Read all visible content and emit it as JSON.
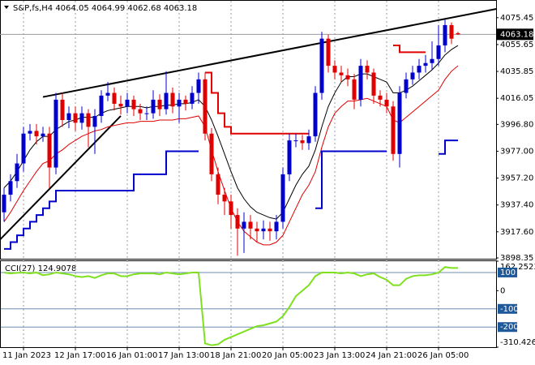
{
  "chart_data": [
    {
      "type": "candlestick",
      "title": "S&P,fs,H4  4064.05 4064.99 4062.68 4063.18",
      "up_color": "#0000cd",
      "down_color": "#e00000",
      "categories": [
        null,
        null,
        null,
        "11 Jan 2023",
        null,
        null,
        null,
        null,
        null,
        null,
        null,
        "12 Jan 17:00",
        null,
        null,
        null,
        null,
        null,
        null,
        null,
        "16 Jan 01:00",
        null,
        null,
        null,
        null,
        null,
        null,
        null,
        "17 Jan 13:00",
        null,
        null,
        null,
        null,
        null,
        null,
        null,
        "18 Jan 21:00",
        null,
        null,
        null,
        null,
        null,
        null,
        null,
        "20 Jan 05:00",
        null,
        null,
        null,
        null,
        null,
        null,
        null,
        "23 Jan 13:00",
        null,
        null,
        null,
        null,
        null,
        null,
        null,
        "24 Jan 21:00",
        null,
        null,
        null,
        null,
        null,
        null,
        null,
        "26 Jan 05:00",
        null,
        null,
        null
      ],
      "open": [
        3932,
        3945,
        3955,
        3968,
        3990,
        3992,
        3988,
        3990,
        3965,
        4015,
        4000,
        4005,
        3998,
        4005,
        3995,
        4003,
        4018,
        4020,
        4012,
        4010,
        4015,
        4008,
        4005,
        4005,
        4015,
        4008,
        4020,
        4010,
        4015,
        4012,
        4020,
        4030,
        3990,
        3960,
        3945,
        3940,
        3930,
        3920,
        3925,
        3920,
        3918,
        3920,
        3918,
        3925,
        3960,
        3985,
        3985,
        3983,
        3988,
        4020,
        4060,
        4040,
        4035,
        4033,
        4030,
        4015,
        4040,
        4035,
        4018,
        4015,
        4010,
        3975,
        4020,
        4030,
        4035,
        4040,
        4042,
        4045,
        4055,
        4070,
        4064.05
      ],
      "high": [
        3950,
        3960,
        3975,
        3995,
        3997,
        3997,
        3995,
        3995,
        4020,
        4020,
        4010,
        4010,
        4010,
        4008,
        4008,
        4022,
        4028,
        4024,
        4018,
        4020,
        4018,
        4012,
        4010,
        4022,
        4019,
        4036,
        4024,
        4020,
        4018,
        4025,
        4035,
        4035,
        3994,
        3965,
        3950,
        3945,
        3935,
        3932,
        3930,
        3925,
        3926,
        3925,
        3930,
        3965,
        3990,
        3990,
        3989,
        3993,
        4025,
        4065,
        4063,
        4044,
        4040,
        4038,
        4034,
        4045,
        4044,
        4038,
        4022,
        4020,
        4014,
        4025,
        4035,
        4040,
        4045,
        4048,
        4058,
        4070,
        4074,
        4072,
        4064.99
      ],
      "low": [
        3925,
        3940,
        3950,
        3962,
        3985,
        3982,
        3984,
        3950,
        3960,
        3995,
        3994,
        3992,
        3993,
        3980,
        3975,
        3998,
        4014,
        4007,
        4004,
        4005,
        4003,
        4000,
        4000,
        4001,
        4003,
        4004,
        4005,
        3998,
        4007,
        4008,
        4012,
        3985,
        3955,
        3938,
        3930,
        3920,
        3900,
        3902,
        3912,
        3910,
        3912,
        3911,
        3912,
        3920,
        3955,
        3980,
        3978,
        3978,
        3984,
        4015,
        4035,
        4030,
        4028,
        4025,
        4008,
        4010,
        4030,
        4012,
        4010,
        4005,
        3970,
        3965,
        4016,
        4026,
        4030,
        4035,
        4037,
        4040,
        4050,
        4056,
        4062.68
      ],
      "close": [
        3945,
        3955,
        3968,
        3990,
        3992,
        3988,
        3990,
        3965,
        4015,
        4000,
        4005,
        3998,
        4005,
        3995,
        4003,
        4018,
        4020,
        4012,
        4010,
        4015,
        4008,
        4005,
        4005,
        4015,
        4008,
        4020,
        4010,
        4015,
        4012,
        4020,
        4030,
        3990,
        3960,
        3945,
        3940,
        3930,
        3920,
        3925,
        3920,
        3918,
        3920,
        3918,
        3925,
        3960,
        3985,
        3985,
        3983,
        3988,
        4020,
        4060,
        4040,
        4035,
        4033,
        4030,
        4015,
        4040,
        4035,
        4018,
        4015,
        4010,
        3975,
        4020,
        4030,
        4035,
        4040,
        4042,
        4045,
        4055,
        4070,
        4060,
        4063.18
      ],
      "overlays": [
        {
          "color": "#000000",
          "values": [
            3950,
            3955,
            3962,
            3970,
            3978,
            3984,
            3988,
            3988,
            3993,
            3996,
            3999,
            4000,
            4002,
            4002,
            4002,
            4005,
            4007,
            4008,
            4009,
            4010,
            4010,
            4010,
            4009,
            4010,
            4010,
            4011,
            4011,
            4012,
            4012,
            4013,
            4015,
            4010,
            4000,
            3988,
            3975,
            3962,
            3950,
            3942,
            3936,
            3932,
            3930,
            3928,
            3927,
            3932,
            3942,
            3952,
            3960,
            3966,
            3978,
            3995,
            4010,
            4020,
            4028,
            4032,
            4032,
            4034,
            4034,
            4032,
            4030,
            4028,
            4020,
            4020,
            4022,
            4025,
            4029,
            4033,
            4037,
            4042,
            4048,
            4052,
            4055
          ]
        },
        {
          "color": "#e00000",
          "values": [
            3925,
            3932,
            3940,
            3948,
            3955,
            3962,
            3968,
            3970,
            3975,
            3978,
            3982,
            3985,
            3988,
            3990,
            3992,
            3993,
            3995,
            3996,
            3997,
            3998,
            3998,
            3999,
            3999,
            3999,
            4000,
            4000,
            4000,
            4001,
            4001,
            4002,
            4003,
            3995,
            3978,
            3962,
            3948,
            3935,
            3925,
            3918,
            3914,
            3910,
            3908,
            3908,
            3910,
            3915,
            3925,
            3935,
            3945,
            3952,
            3962,
            3980,
            3995,
            4005,
            4010,
            4014,
            4014,
            4015,
            4016,
            4014,
            4012,
            4010,
            4000,
            3998,
            4002,
            4006,
            4010,
            4014,
            4018,
            4022,
            4030,
            4036,
            4040
          ]
        },
        {
          "color": "#0000cd",
          "step": true,
          "values": [
            3905,
            3910,
            3915,
            3920,
            3925,
            3930,
            3935,
            3940,
            3948,
            3948,
            3948,
            3948,
            3948,
            3948,
            3948,
            3948,
            3948,
            3948,
            3948,
            3948,
            3960,
            3960,
            3960,
            3960,
            3960,
            3977,
            3977,
            3977,
            3977,
            3977,
            3977,
            null,
            null,
            null,
            null,
            null,
            null,
            null,
            null,
            null,
            null,
            null,
            null,
            null,
            null,
            null,
            null,
            null,
            3935,
            3977,
            3977,
            3977,
            3977,
            3977,
            3977,
            3977,
            3977,
            3977,
            3977,
            3977,
            null,
            null,
            null,
            null,
            null,
            null,
            null,
            3975,
            3985,
            3985,
            3985
          ]
        },
        {
          "color": "#e00000",
          "step": true,
          "values": [
            null,
            null,
            null,
            null,
            null,
            null,
            null,
            null,
            null,
            null,
            null,
            null,
            null,
            null,
            null,
            null,
            null,
            null,
            null,
            null,
            null,
            null,
            null,
            null,
            null,
            null,
            null,
            null,
            null,
            null,
            null,
            4035,
            4020,
            4005,
            3995,
            3990,
            3990,
            3990,
            3990,
            3990,
            3990,
            3990,
            3990,
            3990,
            3990,
            3990,
            3990,
            3990,
            null,
            null,
            null,
            null,
            null,
            null,
            null,
            null,
            null,
            null,
            null,
            null,
            4055,
            4050,
            4050,
            4050,
            4050,
            4050,
            null,
            null,
            null,
            null,
            null
          ]
        }
      ],
      "trendlines": [
        {
          "x": [
            6,
            76
          ],
          "y": [
            4017,
            4082
          ]
        },
        {
          "x": [
            -0.6,
            18
          ],
          "y": [
            3912,
            4003
          ]
        }
      ],
      "last_price": 4063.18,
      "ylim": [
        3898.35,
        4087.3
      ],
      "yticks": [
        4075.45,
        4055.65,
        4035.85,
        4016.05,
        {
          "value": 3996.8,
          "label": "3996.80"
        },
        {
          "value": 3977,
          "label": "3977.00"
        },
        {
          "value": 3957.2,
          "label": "3957.20"
        },
        {
          "value": 3937.4,
          "label": "3937.40"
        },
        {
          "value": 3917.6,
          "label": "3917.60"
        },
        3898.35
      ]
    },
    {
      "type": "line",
      "title": "CCI(27) 124.9078",
      "color": "#7fe020",
      "values": [
        100,
        95,
        98,
        100,
        95,
        100,
        85,
        90,
        100,
        95,
        90,
        80,
        75,
        80,
        70,
        85,
        95,
        95,
        80,
        80,
        90,
        95,
        95,
        95,
        90,
        100,
        95,
        90,
        95,
        100,
        100,
        -290,
        -300,
        -295,
        -270,
        -255,
        -240,
        -225,
        -210,
        -195,
        -190,
        -180,
        -170,
        -140,
        -90,
        -30,
        0,
        30,
        80,
        100,
        100,
        100,
        95,
        100,
        95,
        80,
        90,
        95,
        75,
        60,
        30,
        30,
        65,
        80,
        85,
        85,
        90,
        100,
        130,
        125,
        124.9078
      ],
      "ylim": [
        -310.426,
        162.2523
      ],
      "yticks": [
        162.2523,
        100,
        0,
        -100,
        -200,
        -310.426
      ]
    }
  ]
}
